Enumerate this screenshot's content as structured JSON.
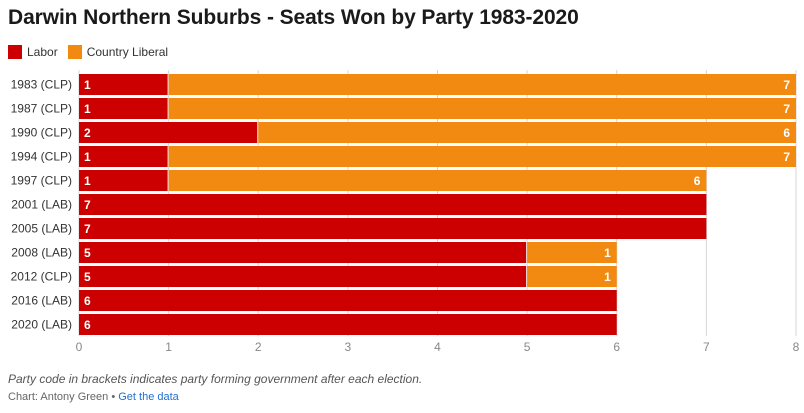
{
  "title": "Darwin Northern Suburbs - Seats Won by Party 1983-2020",
  "legend": [
    {
      "label": "Labor",
      "color": "#cc0000"
    },
    {
      "label": "Country Liberal",
      "color": "#f28a12"
    }
  ],
  "note": "Party code in brackets indicates party forming government after each election.",
  "credit": {
    "prefix": "Chart: Antony Green",
    "separator": " • ",
    "link_label": "Get the data"
  },
  "chart_data": {
    "type": "bar",
    "orientation": "horizontal",
    "stacked": true,
    "title": "Darwin Northern Suburbs - Seats Won by Party 1983-2020",
    "categories": [
      "1983 (CLP)",
      "1987 (CLP)",
      "1990 (CLP)",
      "1994 (CLP)",
      "1997 (CLP)",
      "2001 (LAB)",
      "2005 (LAB)",
      "2008 (LAB)",
      "2012 (CLP)",
      "2016 (LAB)",
      "2020 (LAB)"
    ],
    "series": [
      {
        "name": "Labor",
        "color": "#cc0000",
        "values": [
          1,
          1,
          2,
          1,
          1,
          7,
          7,
          5,
          5,
          6,
          6
        ]
      },
      {
        "name": "Country Liberal",
        "color": "#f28a12",
        "values": [
          7,
          7,
          6,
          7,
          6,
          0,
          0,
          1,
          1,
          0,
          0
        ]
      }
    ],
    "xlim": [
      0,
      8
    ],
    "xticks": [
      0,
      1,
      2,
      3,
      4,
      5,
      6,
      7,
      8
    ],
    "grid": true,
    "legend_position": "top-left",
    "xlabel": "",
    "ylabel": ""
  }
}
